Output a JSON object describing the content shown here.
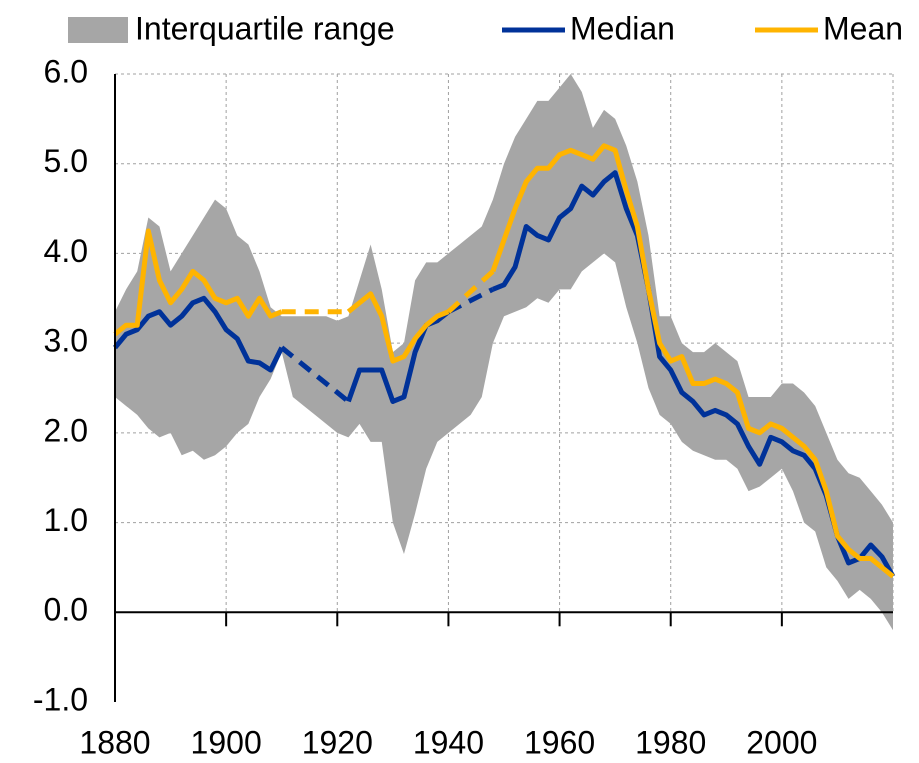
{
  "chart_data": {
    "type": "line",
    "x": [
      1880,
      1882,
      1884,
      1886,
      1888,
      1890,
      1892,
      1894,
      1896,
      1898,
      1900,
      1902,
      1904,
      1906,
      1908,
      1910,
      1912,
      1914,
      1916,
      1918,
      1920,
      1922,
      1924,
      1926,
      1928,
      1930,
      1932,
      1934,
      1936,
      1938,
      1940,
      1942,
      1944,
      1946,
      1948,
      1950,
      1952,
      1954,
      1956,
      1958,
      1960,
      1962,
      1964,
      1966,
      1968,
      1970,
      1972,
      1974,
      1976,
      1978,
      1980,
      1982,
      1984,
      1986,
      1988,
      1990,
      1992,
      1994,
      1996,
      1998,
      2000,
      2002,
      2004,
      2006,
      2008,
      2010,
      2012,
      2014,
      2016,
      2018,
      2020
    ],
    "series": [
      {
        "name": "Interquartile range",
        "color": "#a6a6a6",
        "style": "band",
        "upper": [
          3.35,
          3.6,
          3.8,
          4.4,
          4.3,
          3.8,
          4.0,
          4.2,
          4.4,
          4.6,
          4.5,
          4.2,
          4.1,
          3.8,
          3.4,
          3.3,
          3.3,
          3.3,
          3.3,
          3.3,
          3.25,
          3.3,
          3.7,
          4.1,
          3.6,
          2.9,
          3.0,
          3.7,
          3.9,
          3.9,
          4.0,
          4.1,
          4.2,
          4.3,
          4.6,
          5.0,
          5.3,
          5.5,
          5.7,
          5.7,
          5.85,
          6.0,
          5.8,
          5.4,
          5.6,
          5.5,
          5.2,
          4.8,
          4.2,
          3.3,
          3.3,
          3.0,
          2.9,
          2.9,
          3.0,
          2.9,
          2.8,
          2.4,
          2.4,
          2.4,
          2.55,
          2.55,
          2.45,
          2.3,
          2.0,
          1.7,
          1.55,
          1.5,
          1.35,
          1.2,
          1.0
        ],
        "lower": [
          2.4,
          2.3,
          2.2,
          2.05,
          1.95,
          2.0,
          1.75,
          1.8,
          1.7,
          1.75,
          1.85,
          2.0,
          2.1,
          2.4,
          2.6,
          2.9,
          2.4,
          2.3,
          2.2,
          2.1,
          2.0,
          1.95,
          2.1,
          1.9,
          1.9,
          1.0,
          0.65,
          1.1,
          1.6,
          1.9,
          2.0,
          2.1,
          2.2,
          2.4,
          3.0,
          3.3,
          3.35,
          3.4,
          3.5,
          3.45,
          3.6,
          3.6,
          3.8,
          3.9,
          4.0,
          3.9,
          3.4,
          3.0,
          2.5,
          2.2,
          2.1,
          1.9,
          1.8,
          1.75,
          1.7,
          1.7,
          1.6,
          1.35,
          1.4,
          1.5,
          1.6,
          1.35,
          1.0,
          0.9,
          0.5,
          0.35,
          0.15,
          0.25,
          0.15,
          0.0,
          -0.2
        ]
      },
      {
        "name": "Median",
        "color": "#003299",
        "style": "line",
        "values": [
          2.95,
          3.1,
          3.15,
          3.3,
          3.35,
          3.2,
          3.3,
          3.45,
          3.5,
          3.35,
          3.15,
          3.05,
          2.8,
          2.78,
          2.7,
          2.95,
          null,
          null,
          null,
          null,
          null,
          2.35,
          2.7,
          2.7,
          2.7,
          2.35,
          2.4,
          2.9,
          3.2,
          3.25,
          3.35,
          null,
          null,
          null,
          3.6,
          3.65,
          3.85,
          4.3,
          4.2,
          4.15,
          4.4,
          4.5,
          4.75,
          4.65,
          4.8,
          4.9,
          4.5,
          4.2,
          3.6,
          2.85,
          2.7,
          2.45,
          2.35,
          2.2,
          2.25,
          2.2,
          2.1,
          1.85,
          1.65,
          1.95,
          1.9,
          1.8,
          1.75,
          1.6,
          1.3,
          0.85,
          0.55,
          0.6,
          0.75,
          0.62,
          0.4
        ]
      },
      {
        "name": "Mean",
        "color": "#ffb400",
        "style": "line",
        "values": [
          3.1,
          3.2,
          3.2,
          4.25,
          3.7,
          3.45,
          3.6,
          3.8,
          3.7,
          3.5,
          3.45,
          3.5,
          3.3,
          3.5,
          3.3,
          3.35,
          null,
          null,
          null,
          null,
          null,
          3.35,
          3.45,
          3.55,
          3.3,
          2.8,
          2.85,
          3.05,
          3.2,
          3.3,
          3.35,
          null,
          null,
          null,
          3.8,
          4.15,
          4.5,
          4.8,
          4.95,
          4.95,
          5.1,
          5.15,
          5.1,
          5.05,
          5.2,
          5.15,
          4.7,
          4.3,
          3.6,
          3.0,
          2.8,
          2.85,
          2.55,
          2.55,
          2.6,
          2.55,
          2.45,
          2.05,
          2.0,
          2.1,
          2.05,
          1.95,
          1.85,
          1.7,
          1.35,
          0.85,
          0.7,
          0.6,
          0.6,
          0.5,
          0.4
        ]
      }
    ],
    "gap_style": "dashed",
    "xlim": [
      1880,
      2020
    ],
    "xticks": [
      1880,
      1900,
      1920,
      1940,
      1960,
      1980,
      2000
    ],
    "ylim": [
      -1,
      6
    ],
    "yticks": [
      {
        "value": -1,
        "label": "-1.0"
      },
      {
        "value": 0,
        "label": "0.0"
      },
      {
        "value": 1,
        "label": "1.0"
      },
      {
        "value": 2,
        "label": "2.0"
      },
      {
        "value": 3,
        "label": "3.0"
      },
      {
        "value": 4,
        "label": "4.0"
      },
      {
        "value": 5,
        "label": "5.0"
      },
      {
        "value": 6,
        "label": "6.0"
      }
    ],
    "grid": true,
    "legend": "top"
  }
}
